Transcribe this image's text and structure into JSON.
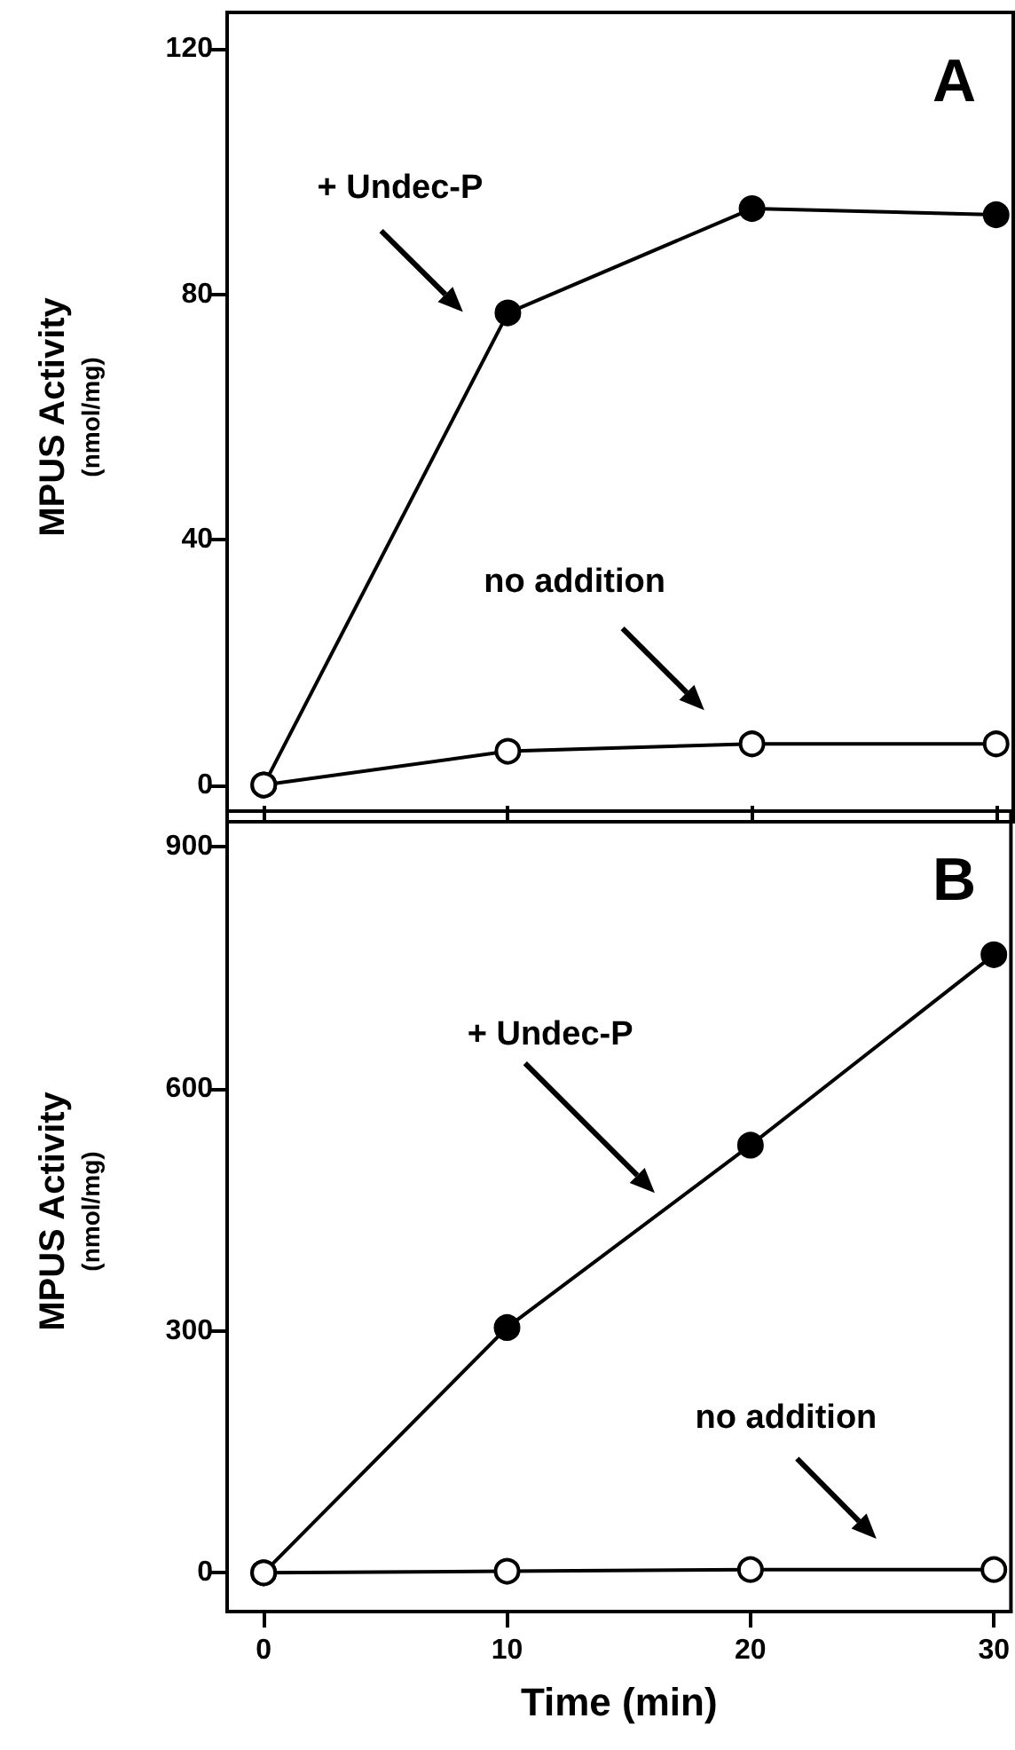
{
  "chart_data": [
    {
      "type": "line",
      "ylabel": "MPUS Activity\n(nmol/mg)",
      "x": [
        0,
        10,
        20,
        30
      ],
      "xlim": [
        -1.5,
        30.7
      ],
      "xticks": [
        0,
        10,
        20,
        30
      ],
      "ylim": [
        -6,
        126
      ],
      "yticks": [
        0,
        40,
        80,
        120
      ],
      "tick_labels": "y",
      "marker": "circle",
      "series": [
        {
          "color": "#000000",
          "values": [
            0,
            77,
            94,
            93
          ]
        },
        {
          "color": "#000000",
          "values": [
            0,
            5.5,
            6.7,
            6.7
          ]
        }
      ],
      "annotations": [
        "A",
        "+ Undec-P",
        "no addition"
      ]
    },
    {
      "type": "line",
      "xlabel": "Time (min)",
      "ylabel": "MPUS Activity\n(nmol/mg)",
      "x": [
        0,
        10,
        20,
        30
      ],
      "xlim": [
        -1.5,
        30.7
      ],
      "xticks": [
        0,
        10,
        20,
        30
      ],
      "ylim": [
        -48,
        944
      ],
      "yticks": [
        0,
        300,
        600,
        900
      ],
      "marker": "circle",
      "series": [
        {
          "color": "#000000",
          "values": [
            0,
            304,
            530,
            766
          ]
        },
        {
          "color": "#000000",
          "values": [
            0,
            2,
            4,
            4
          ]
        }
      ],
      "annotations": [
        "B",
        "+ Undec-P",
        "no addition"
      ]
    }
  ]
}
